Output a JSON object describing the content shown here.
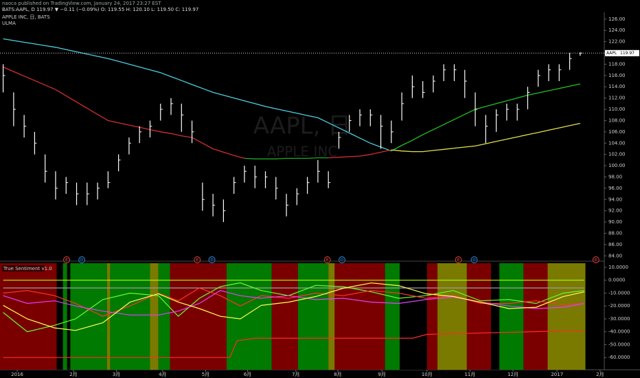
{
  "header": {
    "publisher": "naoca published on TradingView.com, January 24, 2017 23:27 EST",
    "symbol_line": "BATS:AAPL, D 119.97 ▼ −0.11 (−0.09%) O: 119.55 H: 120.10 L: 119.50 C: 119.97"
  },
  "chart_data": [
    {
      "type": "ohlc",
      "title": "APPLE INC, 日, BATS",
      "subtitle": "ULMA",
      "watermark": "AAPL, 日",
      "watermark_sub": "APPLE INC",
      "symbol": "AAPL",
      "x": [
        0,
        1,
        2,
        3,
        4,
        5,
        6,
        7,
        8,
        9,
        10,
        11,
        12,
        13,
        14,
        15,
        16,
        17,
        18,
        19,
        20,
        21,
        22,
        23,
        24,
        25,
        26,
        27,
        28,
        29,
        30,
        31,
        32,
        33,
        34,
        35,
        36,
        37,
        38,
        39,
        40,
        41,
        42,
        43,
        44,
        45,
        46,
        47,
        48,
        49,
        50,
        51,
        52,
        53,
        54,
        55
      ],
      "high": [
        118,
        113,
        109,
        106,
        102,
        99,
        98,
        97,
        97,
        97,
        99,
        102,
        105,
        107,
        108,
        111,
        112,
        111,
        108,
        97,
        95,
        94,
        98,
        100,
        100,
        99,
        98,
        95,
        96,
        98,
        101,
        99,
        106,
        109,
        110,
        110,
        109,
        108,
        113,
        116,
        115,
        116,
        118,
        118,
        117,
        113,
        109,
        110,
        111,
        111,
        114,
        117,
        118,
        118,
        120,
        120.1
      ],
      "low": [
        113,
        107,
        105,
        102,
        97,
        94,
        95,
        93,
        93,
        94,
        96,
        99,
        102,
        104,
        105,
        108,
        109,
        106,
        104,
        92,
        91,
        90,
        95,
        97,
        96,
        96,
        94,
        91,
        93,
        95,
        97,
        96,
        103,
        106,
        107,
        107,
        103,
        104,
        108,
        112,
        112,
        113,
        115,
        115,
        112,
        107,
        104,
        106,
        108,
        108,
        110,
        114,
        115,
        115,
        117,
        119.5
      ],
      "close": [
        116,
        110,
        107,
        104,
        99,
        96,
        97,
        95,
        95,
        96,
        97,
        101,
        104,
        106,
        107,
        110,
        111,
        109,
        106,
        94,
        93,
        92,
        97,
        99,
        98,
        98,
        96,
        93,
        95,
        97,
        99,
        97,
        105,
        108,
        109,
        109,
        107,
        106,
        111,
        114,
        113,
        115,
        117,
        117,
        115,
        110,
        107,
        109,
        110,
        110,
        113,
        116,
        117,
        117,
        119,
        119.97
      ],
      "bar_color": "#ffffff",
      "series": [
        {
          "color": "#4dd0e1",
          "values": [
            122.5,
            122.2,
            121.9,
            121.6,
            121.3,
            121,
            120.6,
            120.2,
            119.8,
            119.4,
            119,
            118.5,
            118,
            117.5,
            117,
            116.5,
            115.8,
            115.1,
            114.4,
            113.7,
            113,
            112.5,
            112,
            111.5,
            111,
            110.5,
            110.1,
            109.7,
            109.3,
            108.9,
            108.5,
            107.6,
            106.7,
            105.8,
            104.9,
            104,
            103.3,
            102.6,
            null,
            null,
            null,
            null,
            null,
            null,
            null,
            null,
            null,
            null,
            null,
            null,
            null,
            null,
            null,
            null,
            null,
            null
          ]
        },
        {
          "color": "#22c322",
          "values": [
            null,
            null,
            null,
            null,
            null,
            null,
            null,
            null,
            null,
            null,
            null,
            null,
            null,
            null,
            null,
            null,
            null,
            null,
            null,
            null,
            null,
            null,
            null,
            null,
            null,
            null,
            null,
            null,
            null,
            null,
            null,
            null,
            null,
            null,
            null,
            null,
            null,
            102.6,
            103.6,
            104.5,
            105.5,
            106.4,
            107.3,
            108.2,
            109.1,
            110,
            110.5,
            111,
            111.5,
            112,
            112.5,
            112.9,
            113.3,
            113.7,
            114.1,
            114.5
          ]
        },
        {
          "color": "#d32f2f",
          "values": [
            117.5,
            116.7,
            115.9,
            115.1,
            114.3,
            113.5,
            112.4,
            111.3,
            110.2,
            109.1,
            108,
            107.6,
            107.2,
            106.8,
            106.4,
            106,
            105.7,
            105.3,
            105,
            104,
            103,
            102.4,
            101.8,
            101.3,
            null,
            null,
            null,
            null,
            null,
            null,
            null,
            null,
            null,
            null,
            null,
            null,
            null,
            null,
            null,
            null,
            null,
            null,
            null,
            null,
            null,
            null,
            null,
            null,
            null,
            null,
            null,
            null,
            null,
            null,
            null,
            null
          ]
        },
        {
          "color": "#22a822",
          "values": [
            null,
            null,
            null,
            null,
            null,
            null,
            null,
            null,
            null,
            null,
            null,
            null,
            null,
            null,
            null,
            null,
            null,
            null,
            null,
            null,
            null,
            null,
            null,
            101.3,
            101.2,
            101.2,
            101.2,
            101.3,
            101.3,
            101.3,
            101.4,
            101.4,
            null,
            null,
            null,
            null,
            null,
            null,
            null,
            null,
            null,
            null,
            null,
            null,
            null,
            null,
            null,
            null,
            null,
            null,
            null,
            null,
            null,
            null,
            null,
            null
          ]
        },
        {
          "color": "#d32f2f",
          "values": [
            null,
            null,
            null,
            null,
            null,
            null,
            null,
            null,
            null,
            null,
            null,
            null,
            null,
            null,
            null,
            null,
            null,
            null,
            null,
            null,
            null,
            null,
            null,
            null,
            null,
            null,
            null,
            null,
            null,
            null,
            null,
            101.4,
            101.5,
            101.6,
            101.7,
            102,
            102.4,
            102.8,
            null,
            null,
            null,
            null,
            null,
            null,
            null,
            null,
            null,
            null,
            null,
            null,
            null,
            null,
            null,
            null,
            null,
            null
          ]
        },
        {
          "color": "#e6e04a",
          "values": [
            null,
            null,
            null,
            null,
            null,
            null,
            null,
            null,
            null,
            null,
            null,
            null,
            null,
            null,
            null,
            null,
            null,
            null,
            null,
            null,
            null,
            null,
            null,
            null,
            null,
            null,
            null,
            null,
            null,
            null,
            null,
            null,
            null,
            null,
            null,
            null,
            null,
            102.8,
            102.6,
            102.5,
            102.5,
            102.7,
            102.9,
            103.1,
            103.3,
            103.5,
            103.9,
            104.3,
            104.7,
            105.1,
            105.5,
            105.9,
            106.3,
            106.7,
            107.1,
            107.5
          ]
        }
      ],
      "xlim": [
        -0.3,
        57.3
      ],
      "ylim": [
        83.3,
        127.2
      ],
      "yticks": [
        {
          "value": 126,
          "label": "126.00"
        },
        {
          "value": 124,
          "label": "124.00"
        },
        {
          "value": 122,
          "label": "122.00"
        },
        {
          "value": 120,
          "label": "120.00"
        },
        {
          "value": 118,
          "label": "118.00"
        },
        {
          "value": 116,
          "label": "116.00"
        },
        {
          "value": 114,
          "label": "114.00"
        },
        {
          "value": 112,
          "label": "112.00"
        },
        {
          "value": 110,
          "label": "110.00"
        },
        {
          "value": 108,
          "label": "108.00"
        },
        {
          "value": 106,
          "label": "106.00"
        },
        {
          "value": 104,
          "label": "104.00"
        },
        {
          "value": 102,
          "label": "102.00"
        },
        {
          "value": 100,
          "label": "100.00"
        },
        {
          "value": 98,
          "label": "98.00"
        },
        {
          "value": 96,
          "label": "96.00"
        },
        {
          "value": 94,
          "label": "94.00"
        },
        {
          "value": 92,
          "label": "92.00"
        },
        {
          "value": 90,
          "label": "90.00"
        },
        {
          "value": 88,
          "label": "88.00"
        },
        {
          "value": 86,
          "label": "86.00"
        },
        {
          "value": 84,
          "label": "84.00"
        }
      ],
      "events": [
        {
          "x": 6.05,
          "label": "E",
          "color": "#e53935"
        },
        {
          "x": 7.5,
          "label": "D",
          "color": "#1e88e5"
        },
        {
          "x": 18.5,
          "label": "E",
          "color": "#e53935"
        },
        {
          "x": 19.9,
          "label": "D",
          "color": "#1e88e5"
        },
        {
          "x": 30.9,
          "label": "E",
          "color": "#e53935"
        },
        {
          "x": 32.3,
          "label": "D",
          "color": "#1e88e5"
        },
        {
          "x": 43.4,
          "label": "E",
          "color": "#e53935"
        },
        {
          "x": 44.9,
          "label": "D",
          "color": "#1e88e5"
        },
        {
          "x": 56.5,
          "label": "E",
          "color": "#e53935"
        }
      ]
    },
    {
      "type": "indicator",
      "title": "True Sentiment v1.0",
      "bands": [
        {
          "from": -0.3,
          "to": 5.1,
          "color": "#7a0000"
        },
        {
          "from": 5.1,
          "to": 5.7,
          "color": "#000000"
        },
        {
          "from": 5.7,
          "to": 6.1,
          "color": "#007a00"
        },
        {
          "from": 6.1,
          "to": 6.4,
          "color": "#000000"
        },
        {
          "from": 6.4,
          "to": 9.9,
          "color": "#007a00"
        },
        {
          "from": 9.9,
          "to": 10.2,
          "color": "#7a7a00"
        },
        {
          "from": 10.2,
          "to": 14.0,
          "color": "#007a00"
        },
        {
          "from": 14.0,
          "to": 14.8,
          "color": "#7a7a00"
        },
        {
          "from": 14.8,
          "to": 15.9,
          "color": "#007a00"
        },
        {
          "from": 15.9,
          "to": 21.3,
          "color": "#7a0000"
        },
        {
          "from": 21.3,
          "to": 25.6,
          "color": "#007a00"
        },
        {
          "from": 25.6,
          "to": 28.1,
          "color": "#7a0000"
        },
        {
          "from": 28.1,
          "to": 31.0,
          "color": "#007a00"
        },
        {
          "from": 31.0,
          "to": 31.6,
          "color": "#7a7a00"
        },
        {
          "from": 31.6,
          "to": 36.4,
          "color": "#7a0000"
        },
        {
          "from": 36.4,
          "to": 37.8,
          "color": "#007a00"
        },
        {
          "from": 37.8,
          "to": 40.4,
          "color": "#000000"
        },
        {
          "from": 40.4,
          "to": 41.4,
          "color": "#7a0000"
        },
        {
          "from": 41.4,
          "to": 44.2,
          "color": "#7a7a00"
        },
        {
          "from": 44.2,
          "to": 46.5,
          "color": "#7a0000"
        },
        {
          "from": 46.5,
          "to": 47.3,
          "color": "#000000"
        },
        {
          "from": 47.3,
          "to": 49.6,
          "color": "#007a00"
        },
        {
          "from": 49.6,
          "to": 51.9,
          "color": "#7a0000"
        },
        {
          "from": 51.9,
          "to": 55.5,
          "color": "#7a7a00"
        }
      ],
      "x": [
        0,
        2.3,
        4.9,
        6.9,
        9.5,
        12.1,
        14.8,
        16.7,
        18.7,
        20.7,
        22.6,
        24.6,
        27.2,
        29.8,
        32.4,
        35.1,
        37.7,
        40.3,
        42.9,
        45.5,
        48.2,
        50.8,
        53.4,
        55.4
      ],
      "series": [
        {
          "color": "#aaff00",
          "x": [
            0,
            55.4
          ],
          "values": [
            0,
            0
          ]
        },
        {
          "color": "#9e9e9e",
          "x": [
            0,
            55.4
          ],
          "values": [
            -6,
            -6
          ]
        },
        {
          "color": "#ff2a2a",
          "x": [
            0,
            21.6,
            22.3,
            24.0,
            39.0,
            40.4,
            55.4
          ],
          "values": [
            -60,
            -60,
            -47,
            -45,
            -45,
            -42,
            -39
          ]
        },
        {
          "color": "#66ff33",
          "values": [
            -25,
            -40,
            -35,
            -30,
            -15,
            -10,
            -12,
            -28,
            -14,
            -5,
            -2,
            -8,
            -12,
            -4,
            -5,
            -9,
            -14,
            -12,
            -8,
            -16,
            -15,
            -18,
            -10,
            -8
          ]
        },
        {
          "color": "#ff3333",
          "values": [
            -10,
            -8,
            -12,
            -18,
            -28,
            -20,
            -10,
            -16,
            -6,
            -12,
            -20,
            -12,
            -14,
            -10,
            -12,
            -8,
            -10,
            -14,
            -12,
            -18,
            -18,
            -16,
            -19,
            -18
          ]
        },
        {
          "color": "#e040fb",
          "values": [
            -12,
            -18,
            -16,
            -20,
            -24,
            -27,
            -27,
            -24,
            -18,
            -8,
            -12,
            -14,
            -12,
            -15,
            -14,
            -17,
            -18,
            -15,
            -13,
            -17,
            -20,
            -22,
            -21,
            -18
          ]
        },
        {
          "color": "#ffff55",
          "values": [
            -19.5,
            -30,
            -37,
            -39,
            -33,
            -17,
            -10.5,
            -17,
            -22,
            -28,
            -30,
            -19.5,
            -17,
            -12.6,
            -6.3,
            -2.1,
            -4.2,
            -10.5,
            -12.6,
            -17,
            -22,
            -21,
            -12.6,
            -9
          ]
        }
      ],
      "xlim": [
        -0.3,
        57.3
      ],
      "ylim": [
        -69.5,
        13.2
      ],
      "yticks": [
        {
          "value": 10,
          "label": "10.0000"
        },
        {
          "value": 0,
          "label": "0.0000"
        },
        {
          "value": -10,
          "label": "-10.0000"
        },
        {
          "value": -20,
          "label": "-20.0000"
        },
        {
          "value": -30,
          "label": "-30.0000"
        },
        {
          "value": -40,
          "label": "-40.0000"
        },
        {
          "value": -50,
          "label": "-50.0000"
        },
        {
          "value": -60,
          "label": "-60.0000"
        }
      ],
      "xticks": [
        {
          "value": 1.34,
          "label": "2016"
        },
        {
          "value": 6.7,
          "label": "2月"
        },
        {
          "value": 10.8,
          "label": "3月"
        },
        {
          "value": 15.2,
          "label": "4月"
        },
        {
          "value": 19.3,
          "label": "5月"
        },
        {
          "value": 23.3,
          "label": "6月"
        },
        {
          "value": 27.9,
          "label": "7月"
        },
        {
          "value": 31.9,
          "label": "8月"
        },
        {
          "value": 36.1,
          "label": "9月"
        },
        {
          "value": 40.4,
          "label": "10月"
        },
        {
          "value": 44.5,
          "label": "11月"
        },
        {
          "value": 48.6,
          "label": "12月"
        },
        {
          "value": 52.8,
          "label": "2017"
        },
        {
          "value": 56.9,
          "label": "2月"
        }
      ]
    }
  ]
}
